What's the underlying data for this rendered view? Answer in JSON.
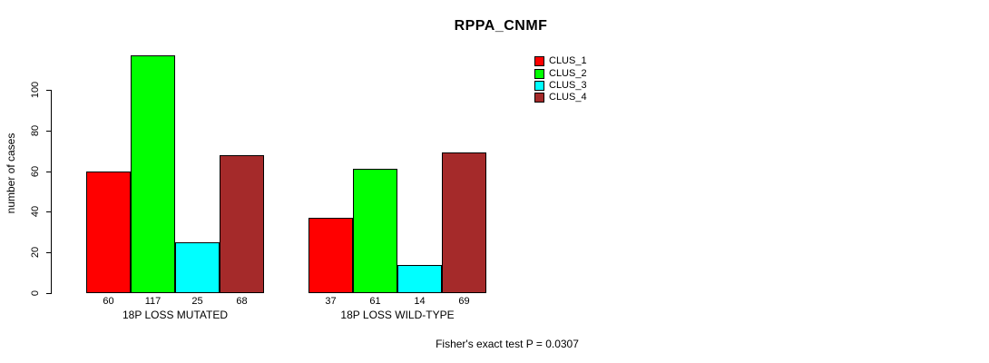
{
  "chart_data": {
    "type": "bar",
    "title": "RPPA_CNMF",
    "ylabel": "number of cases",
    "ylim": [
      0,
      117
    ],
    "yticks": [
      0,
      20,
      40,
      60,
      80,
      100
    ],
    "grid": false,
    "legend_position": "top-right",
    "categories": [
      "18P LOSS MUTATED",
      "18P LOSS WILD-TYPE"
    ],
    "series": [
      {
        "name": "CLUS_1",
        "color": "#FF0000",
        "values": [
          60,
          37
        ]
      },
      {
        "name": "CLUS_2",
        "color": "#00FF00",
        "values": [
          117,
          61
        ]
      },
      {
        "name": "CLUS_3",
        "color": "#00FFFF",
        "values": [
          25,
          14
        ]
      },
      {
        "name": "CLUS_4",
        "color": "#A52A2A",
        "values": [
          68,
          69
        ]
      }
    ],
    "annotation": "Fisher's exact test P = 0.0307"
  }
}
